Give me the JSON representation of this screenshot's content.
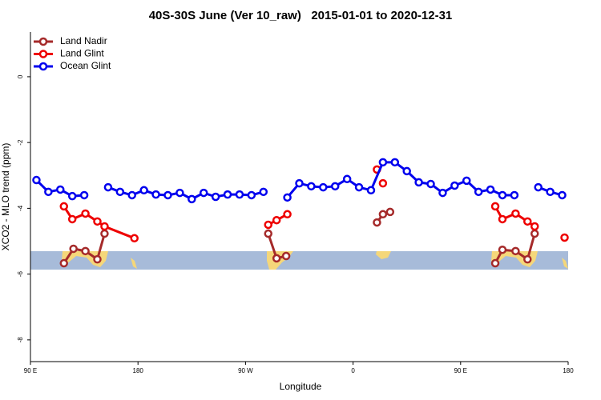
{
  "chart_data": {
    "type": "line",
    "title": "40S-30S June (Ver 10_raw)   2015-01-01 to 2020-12-31",
    "x_label": "Longitude",
    "y_label": "XCO2 - MLO trend (ppm)",
    "xlim": [
      90,
      540
    ],
    "ylim": [
      -8.66,
      1.36
    ],
    "xticks": [
      {
        "value": 90,
        "label": "90 E"
      },
      180,
      {
        "value": 270,
        "label": "90 W"
      },
      {
        "value": 360,
        "label": "0"
      },
      {
        "value": 450,
        "label": "90 E"
      },
      {
        "value": 540,
        "label": "180"
      }
    ],
    "yticks": [
      0,
      -2,
      -4,
      -6,
      -8
    ],
    "legend": "top-left",
    "series": [
      {
        "name": "Land Nadir",
        "color": "#a52a2a",
        "x": [
          118,
          126,
          136,
          146,
          152,
          null,
          289,
          296,
          304,
          null,
          380,
          385,
          391,
          null,
          479,
          485,
          496,
          506,
          512
        ],
        "values": [
          -5.67,
          -5.23,
          -5.3,
          -5.55,
          -4.77,
          null,
          -4.77,
          -5.52,
          -5.45,
          null,
          -4.43,
          -4.18,
          -4.11,
          null,
          -5.67,
          -5.26,
          -5.3,
          -5.55,
          -4.77
        ]
      },
      {
        "name": "Land Glint",
        "color": "#ee0000",
        "x": [
          118,
          125,
          136,
          146,
          152,
          177,
          null,
          289,
          296,
          305,
          null,
          380,
          null,
          385,
          null,
          479,
          485,
          496,
          506,
          512,
          null,
          537
        ],
        "values": [
          -3.94,
          -4.33,
          -4.16,
          -4.4,
          -4.55,
          -4.91,
          null,
          -4.5,
          -4.36,
          -4.18,
          null,
          -2.82,
          null,
          -3.24,
          null,
          -3.94,
          -4.33,
          -4.16,
          -4.4,
          -4.55,
          null,
          -4.89
        ]
      },
      {
        "name": "Ocean Glint",
        "color": "#0000ee",
        "x": [
          95,
          105,
          115,
          125,
          135,
          null,
          155,
          165,
          175,
          185,
          195,
          205,
          215,
          225,
          235,
          245,
          255,
          265,
          275,
          285,
          null,
          305,
          315,
          325,
          335,
          345,
          355,
          365,
          375,
          385,
          395,
          405,
          415,
          425,
          435,
          445,
          455,
          465,
          475,
          485,
          495,
          null,
          515,
          525,
          535
        ],
        "values": [
          -3.14,
          -3.5,
          -3.43,
          -3.63,
          -3.6,
          null,
          -3.36,
          -3.5,
          -3.6,
          -3.45,
          -3.58,
          -3.6,
          -3.53,
          -3.72,
          -3.53,
          -3.65,
          -3.58,
          -3.58,
          -3.6,
          -3.5,
          null,
          -3.67,
          -3.24,
          -3.33,
          -3.36,
          -3.33,
          -3.11,
          -3.36,
          -3.45,
          -2.6,
          -2.6,
          -2.87,
          -3.21,
          -3.26,
          -3.53,
          -3.31,
          -3.16,
          -3.5,
          -3.43,
          -3.6,
          -3.6,
          null,
          -3.36,
          -3.5,
          -3.6
        ]
      }
    ]
  }
}
